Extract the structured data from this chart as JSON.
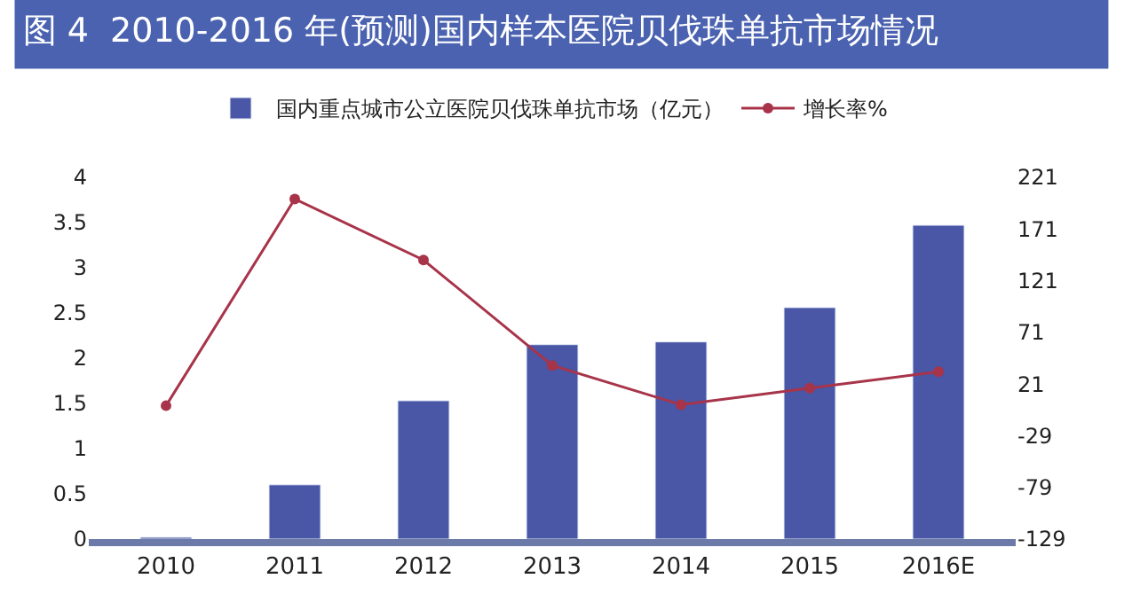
{
  "chart_data": {
    "type": "bar",
    "title": "图 4  2010-2016 年(预测)国内样本医院贝伐珠单抗市场情况",
    "categories": [
      "2010",
      "2011",
      "2012",
      "2013",
      "2014",
      "2015",
      "2016E"
    ],
    "series": [
      {
        "name": "国内重点城市公立医院贝伐珠单抗市场（亿元）",
        "color": "#4a56a6",
        "values": [
          0.02,
          0.6,
          1.53,
          2.15,
          2.18,
          2.56,
          3.47
        ]
      },
      {
        "name": "增长率%",
        "type": "line",
        "axis": "y2",
        "color": "#a8344a",
        "values": [
          0,
          200,
          141,
          39,
          1,
          17,
          33
        ]
      }
    ],
    "ylim": [
      0,
      4
    ],
    "yticks": [
      0,
      0.5,
      1,
      1.5,
      2,
      2.5,
      3,
      3.5,
      4
    ],
    "y2lim": [
      -129,
      221
    ],
    "y2ticks": [
      -129,
      -79,
      -29,
      21,
      71,
      121,
      171,
      221
    ],
    "marker": "circle",
    "legend": "top"
  }
}
